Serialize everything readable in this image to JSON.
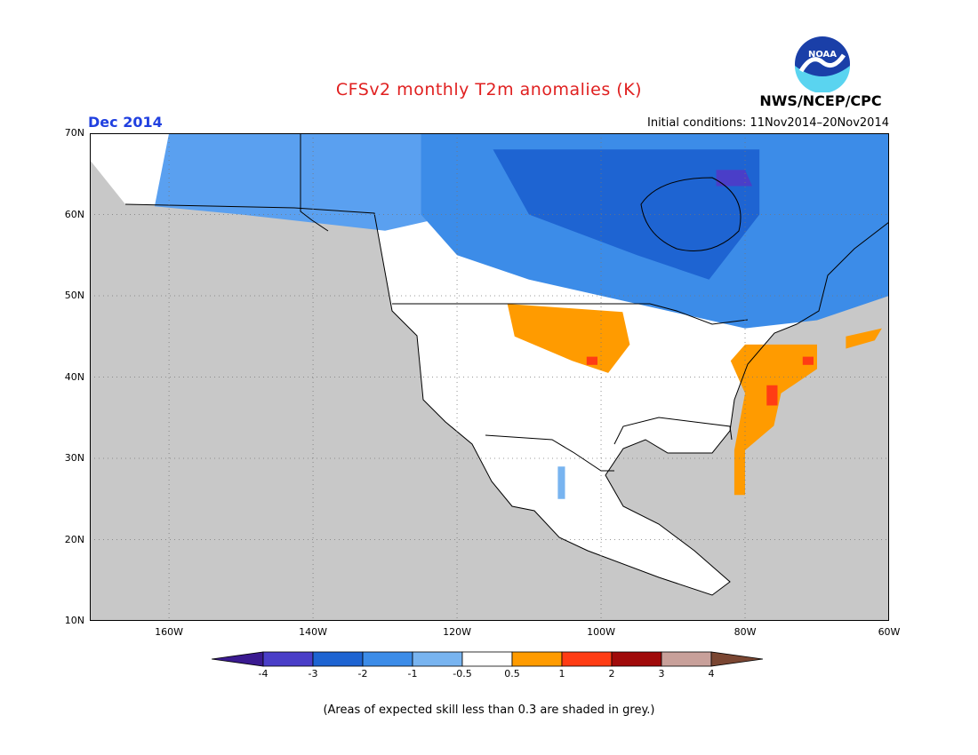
{
  "title": "CFSv2 monthly T2m anomalies (K)",
  "month_label": "Dec 2014",
  "initial_conditions": "Initial conditions: 11Nov2014–20Nov2014",
  "organization": "NWS/NCEP/CPC",
  "logo_text": "NOAA",
  "footnote": "(Areas of expected skill less than 0.3 are shaded in grey.)",
  "map": {
    "lon_range": [
      -171,
      -60
    ],
    "lat_range": [
      10,
      70
    ],
    "lat_ticks": [
      {
        "value": 70,
        "label": "70N"
      },
      {
        "value": 60,
        "label": "60N"
      },
      {
        "value": 50,
        "label": "50N"
      },
      {
        "value": 40,
        "label": "40N"
      },
      {
        "value": 30,
        "label": "30N"
      },
      {
        "value": 20,
        "label": "20N"
      },
      {
        "value": 10,
        "label": "10N"
      }
    ],
    "lon_ticks": [
      {
        "value": -160,
        "label": "160W"
      },
      {
        "value": -140,
        "label": "140W"
      },
      {
        "value": -120,
        "label": "120W"
      },
      {
        "value": -100,
        "label": "100W"
      },
      {
        "value": -80,
        "label": "80W"
      },
      {
        "value": -60,
        "label": "60W"
      }
    ],
    "low_skill_color": "#c8c8c8",
    "near_normal_color": "#ffffff",
    "anomaly_regions": [
      {
        "name": "alaska-yukon-cold",
        "category": "-1",
        "color": "#5aa0f0",
        "points": [
          [
            -160,
            70
          ],
          [
            -110,
            70
          ],
          [
            -110,
            62
          ],
          [
            -130,
            58
          ],
          [
            -150,
            60
          ],
          [
            -162,
            61
          ]
        ]
      },
      {
        "name": "canada-cold",
        "category": "-2",
        "color": "#3c8ce8",
        "points": [
          [
            -125,
            70
          ],
          [
            -60,
            70
          ],
          [
            -60,
            50
          ],
          [
            -70,
            47
          ],
          [
            -80,
            46
          ],
          [
            -95,
            49
          ],
          [
            -110,
            52
          ],
          [
            -120,
            55
          ],
          [
            -125,
            60
          ]
        ]
      },
      {
        "name": "hudson-strong-cold",
        "category": "-3",
        "color": "#1e64d2",
        "points": [
          [
            -115,
            68
          ],
          [
            -78,
            68
          ],
          [
            -78,
            60
          ],
          [
            -85,
            52
          ],
          [
            -95,
            55
          ],
          [
            -110,
            60
          ]
        ]
      },
      {
        "name": "arctic-coldest",
        "category": "-4",
        "color": "#4a3ec8",
        "points": [
          [
            -84,
            65.5
          ],
          [
            -80,
            65.5
          ],
          [
            -79,
            63.5
          ],
          [
            -84,
            63.5
          ]
        ]
      },
      {
        "name": "northern-plains-warm",
        "category": "0.5",
        "color": "#ff9b00",
        "points": [
          [
            -113,
            49
          ],
          [
            -97,
            48
          ],
          [
            -96,
            44
          ],
          [
            -99,
            40.5
          ],
          [
            -104,
            42
          ],
          [
            -112,
            45
          ]
        ]
      },
      {
        "name": "east-coast-warm",
        "category": "0.5",
        "color": "#ff9b00",
        "points": [
          [
            -80,
            44
          ],
          [
            -70,
            44
          ],
          [
            -70,
            41
          ],
          [
            -75,
            38
          ],
          [
            -76,
            34
          ],
          [
            -80,
            31
          ],
          [
            -80,
            25.5
          ],
          [
            -81.5,
            25.5
          ],
          [
            -81.5,
            31
          ],
          [
            -80,
            38
          ],
          [
            -82,
            42
          ]
        ]
      },
      {
        "name": "nova-scotia-warm",
        "category": "0.5",
        "color": "#ff9b00",
        "points": [
          [
            -66,
            45
          ],
          [
            -61,
            46
          ],
          [
            -62,
            44.5
          ],
          [
            -66,
            43.5
          ]
        ]
      },
      {
        "name": "mid-atlantic-warm1",
        "category": "1",
        "color": "#ff3c14",
        "points": [
          [
            -77,
            39
          ],
          [
            -75.5,
            39
          ],
          [
            -75.5,
            36.5
          ],
          [
            -77,
            36.5
          ]
        ]
      },
      {
        "name": "new-england-warm1",
        "category": "1",
        "color": "#ff3c14",
        "points": [
          [
            -72,
            42.5
          ],
          [
            -70.5,
            42.5
          ],
          [
            -70.5,
            41.5
          ],
          [
            -72,
            41.5
          ]
        ]
      },
      {
        "name": "plains-warm1",
        "category": "1",
        "color": "#ff3c14",
        "points": [
          [
            -102,
            42.5
          ],
          [
            -100.5,
            42.5
          ],
          [
            -100.5,
            41.5
          ],
          [
            -102,
            41.5
          ]
        ]
      },
      {
        "name": "mexico-cool",
        "category": "-0.5",
        "color": "#78b4f0",
        "points": [
          [
            -106,
            29
          ],
          [
            -105,
            29
          ],
          [
            -105,
            25
          ],
          [
            -106,
            25
          ]
        ]
      }
    ]
  },
  "colorbar": {
    "min_color": "#3a1a90",
    "max_color": "#7a4632",
    "segments": [
      {
        "color": "#4a3ec8"
      },
      {
        "color": "#1e64d2"
      },
      {
        "color": "#3c8ce8"
      },
      {
        "color": "#78b4f0"
      },
      {
        "color": "#ffffff"
      },
      {
        "color": "#ff9b00"
      },
      {
        "color": "#ff3c14"
      },
      {
        "color": "#a00a0a"
      },
      {
        "color": "#c8a09a"
      }
    ],
    "labels": [
      "-4",
      "-3",
      "-2",
      "-1",
      "-0.5",
      "0.5",
      "1",
      "2",
      "3",
      "4"
    ]
  }
}
